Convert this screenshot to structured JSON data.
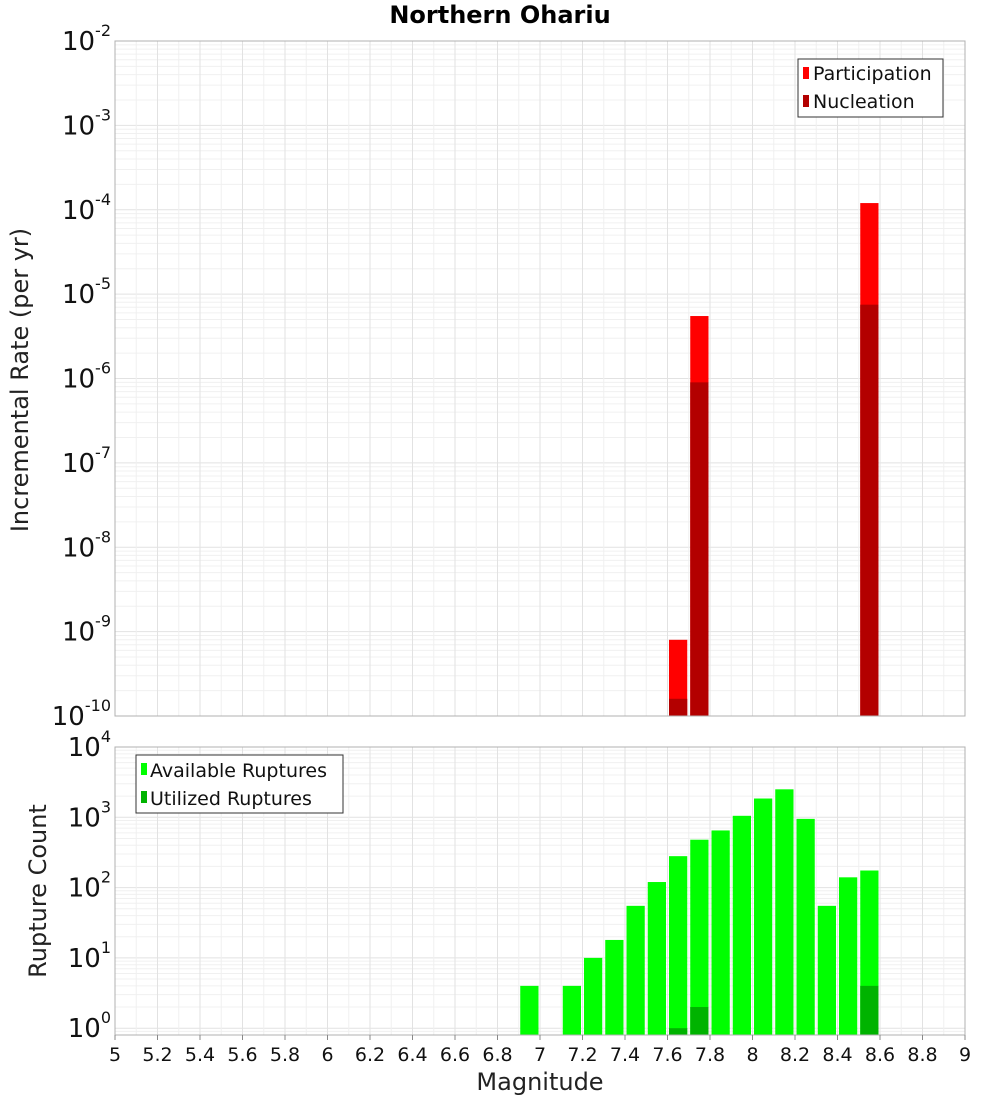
{
  "chart_data": [
    {
      "type": "bar",
      "title": "Northern Ohariu",
      "xlabel": "",
      "ylabel": "Incremental Rate (per yr)",
      "yscale": "log",
      "xlim": [
        5,
        9
      ],
      "ylim": [
        1e-10,
        0.01
      ],
      "ytick_exponents": [
        -10,
        -9,
        -8,
        -7,
        -6,
        -5,
        -4,
        -3,
        -2
      ],
      "bin_width": 0.1,
      "legend": {
        "position": "top-right",
        "entries": [
          "Participation",
          "Nucleation"
        ]
      },
      "series": [
        {
          "name": "Participation",
          "color": "#ff0000",
          "points": [
            {
              "x": 7.65,
              "y": 8e-10
            },
            {
              "x": 7.75,
              "y": 5.5e-06
            },
            {
              "x": 8.55,
              "y": 0.00012
            }
          ]
        },
        {
          "name": "Nucleation",
          "color": "#b30000",
          "points": [
            {
              "x": 7.65,
              "y": 1.6e-10
            },
            {
              "x": 7.75,
              "y": 9e-07
            },
            {
              "x": 8.55,
              "y": 7.5e-06
            }
          ]
        }
      ]
    },
    {
      "type": "bar",
      "title": "",
      "xlabel": "Magnitude",
      "ylabel": "Rupture Count",
      "yscale": "log",
      "xlim": [
        5,
        9
      ],
      "ylim": [
        0.8,
        10000
      ],
      "ytick_exponents": [
        0,
        1,
        2,
        3,
        4
      ],
      "xticks": [
        "5",
        "5.2",
        "5.4",
        "5.6",
        "5.8",
        "6",
        "6.2",
        "6.4",
        "6.6",
        "6.8",
        "7",
        "7.2",
        "7.4",
        "7.6",
        "7.8",
        "8",
        "8.2",
        "8.4",
        "8.6",
        "8.8",
        "9"
      ],
      "bin_width": 0.1,
      "legend": {
        "position": "top-left",
        "entries": [
          "Available Ruptures",
          "Utilized Ruptures"
        ]
      },
      "series": [
        {
          "name": "Available Ruptures",
          "color": "#00ff00",
          "points": [
            {
              "x": 6.95,
              "y": 4
            },
            {
              "x": 7.15,
              "y": 4
            },
            {
              "x": 7.25,
              "y": 10
            },
            {
              "x": 7.35,
              "y": 18
            },
            {
              "x": 7.45,
              "y": 55
            },
            {
              "x": 7.55,
              "y": 120
            },
            {
              "x": 7.65,
              "y": 280
            },
            {
              "x": 7.75,
              "y": 480
            },
            {
              "x": 7.85,
              "y": 650
            },
            {
              "x": 7.95,
              "y": 1050
            },
            {
              "x": 8.05,
              "y": 1850
            },
            {
              "x": 8.15,
              "y": 2500
            },
            {
              "x": 8.25,
              "y": 950
            },
            {
              "x": 8.35,
              "y": 55
            },
            {
              "x": 8.45,
              "y": 140
            },
            {
              "x": 8.55,
              "y": 175
            }
          ]
        },
        {
          "name": "Utilized Ruptures",
          "color": "#00b300",
          "points": [
            {
              "x": 7.65,
              "y": 1
            },
            {
              "x": 7.75,
              "y": 2
            },
            {
              "x": 8.55,
              "y": 4
            }
          ]
        }
      ]
    }
  ]
}
